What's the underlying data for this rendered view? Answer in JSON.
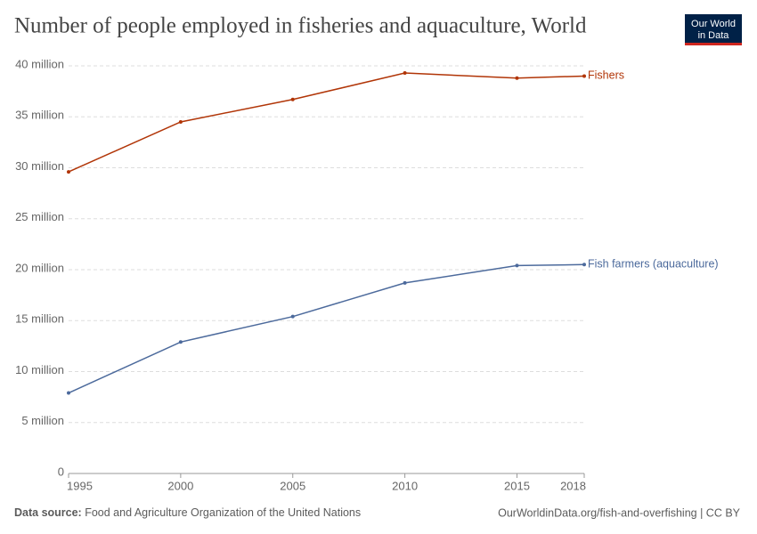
{
  "chart_data": {
    "type": "line",
    "title": "Number of people employed in fisheries and aquaculture, World",
    "x": [
      1995,
      2000,
      2005,
      2010,
      2015,
      2018
    ],
    "series": [
      {
        "name": "Fishers",
        "color": "#b13507",
        "values": [
          29600000,
          34500000,
          36700000,
          39300000,
          38800000,
          39000000
        ]
      },
      {
        "name": "Fish farmers (aquaculture)",
        "color": "#4c6a9c",
        "values": [
          7900000,
          12900000,
          15400000,
          18700000,
          20400000,
          20500000
        ]
      }
    ],
    "xlim": [
      1995,
      2018
    ],
    "xticks": [
      1995,
      2000,
      2005,
      2010,
      2015,
      2018
    ],
    "ylim": [
      0,
      40000000
    ],
    "yticks": [
      0,
      {
        "value": 5000000,
        "label": "5 million"
      },
      {
        "value": 10000000,
        "label": "10 million"
      },
      {
        "value": 15000000,
        "label": "15 million"
      },
      {
        "value": 20000000,
        "label": "20 million"
      },
      {
        "value": 25000000,
        "label": "25 million"
      },
      {
        "value": 30000000,
        "label": "30 million"
      },
      {
        "value": 35000000,
        "label": "35 million"
      },
      {
        "value": 40000000,
        "label": "40 million"
      }
    ],
    "grid": true
  },
  "logo": [
    "Our World",
    "in Data"
  ],
  "footer": {
    "source_label": "Data source:",
    "source": "Food and Agriculture Organization of the United Nations",
    "url": "OurWorldinData.org/fish-and-overfishing | CC BY"
  }
}
